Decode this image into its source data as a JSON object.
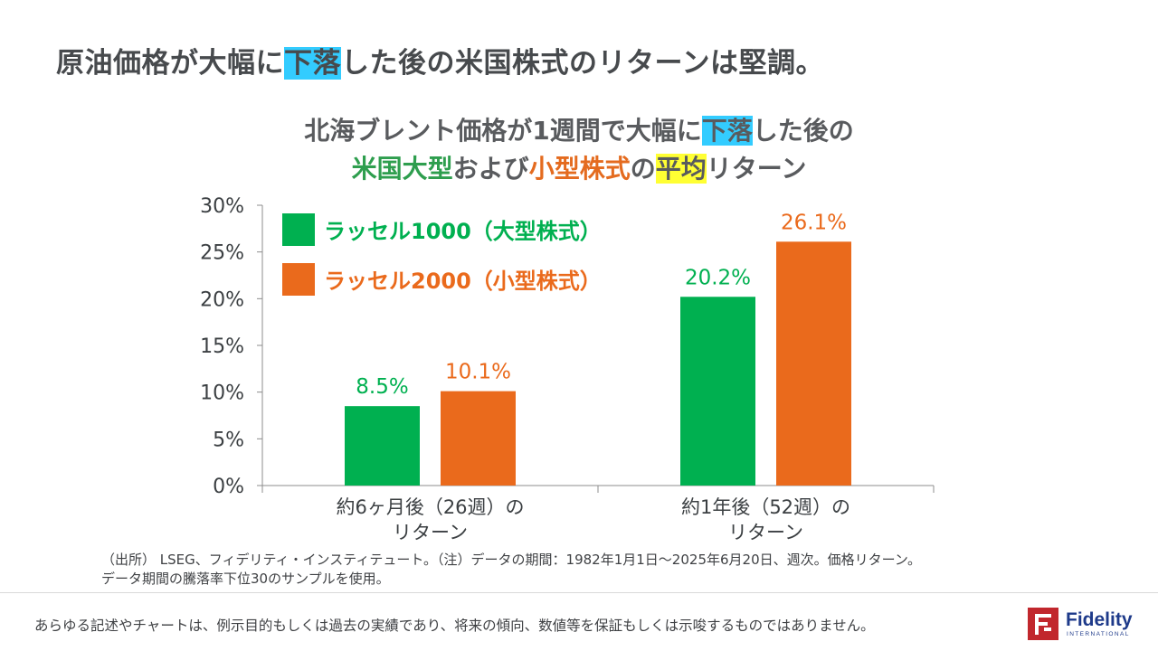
{
  "header": {
    "title_pre": "原油価格が大幅に",
    "title_highlight": "下落",
    "title_post": "した後の米国株式のリターンは堅調。"
  },
  "chart_heading": {
    "line1_pre": "北海ブレント価格が1週間で大幅に",
    "line1_highlight": "下落",
    "line1_post": "した後の",
    "line2_green": "米国大型",
    "line2_mid": "および",
    "line2_orange": "小型株式",
    "line2_no": "の",
    "line2_highlight": "平均",
    "line2_post": "リターン"
  },
  "chart_data": {
    "type": "bar",
    "categories": [
      "約6ヶ月後（26週）の\nリターン",
      "約1年後（52週）の\nリターン"
    ],
    "series": [
      {
        "name": "ラッセル1000（大型株式）",
        "values": [
          8.5,
          20.2
        ],
        "labels": [
          "8.5%",
          "20.2%"
        ],
        "color": "#00b050"
      },
      {
        "name": "ラッセル2000（小型株式）",
        "values": [
          10.1,
          26.1
        ],
        "labels": [
          "10.1%",
          "26.1%"
        ],
        "color": "#ea6a1c"
      }
    ],
    "yticks": [
      0,
      5,
      10,
      15,
      20,
      25,
      30
    ],
    "ytick_labels": [
      "0%",
      "5%",
      "10%",
      "15%",
      "20%",
      "25%",
      "30%"
    ],
    "ylim": [
      0,
      30
    ],
    "grid": false,
    "legend": "top-left"
  },
  "footnote": {
    "line1": "（出所） LSEG、フィデリティ・インスティテュート。（注）データの期間：1982年1月1日～2025年6月20日、週次。価格リターン。",
    "line2": "データ期間の騰落率下位30のサンプルを使用。"
  },
  "disclaimer": "あらゆる記述やチャートは、例示目的もしくは過去の実績であり、将来の傾向、数値等を保証もしくは示唆するものではありません。",
  "logo": {
    "name": "Fidelity",
    "sub": "INTERNATIONAL"
  }
}
